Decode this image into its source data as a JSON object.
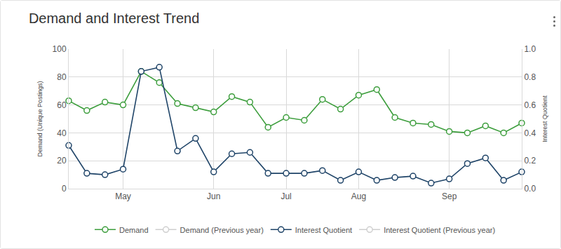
{
  "chart_data": {
    "type": "line",
    "title": "Demand and Interest Trend",
    "categories": [
      null,
      null,
      null,
      "May",
      null,
      null,
      null,
      null,
      "Jun",
      null,
      null,
      null,
      "Jul",
      null,
      null,
      null,
      "Aug",
      null,
      null,
      null,
      null,
      "Sep",
      null,
      null,
      null,
      null
    ],
    "y_label": "Demand (Unique Postings)",
    "y2_label": "Interest Quotient",
    "ylim": [
      0,
      100
    ],
    "yticks": [
      0,
      20,
      40,
      60,
      80,
      100
    ],
    "y2lim": [
      0,
      1
    ],
    "y2ticks": [
      {
        "value": 0,
        "label": "0.0"
      },
      {
        "value": 0.2,
        "label": "0.2"
      },
      {
        "value": 0.4,
        "label": "0.4"
      },
      {
        "value": 0.6,
        "label": "0.6"
      },
      {
        "value": 0.8,
        "label": "0.8"
      },
      {
        "value": 1,
        "label": "1.0"
      }
    ],
    "grid": true,
    "legend": "bottom",
    "marker": "circle-open",
    "series": [
      {
        "name": "Demand",
        "color": "#3d9e3d",
        "values": [
          63,
          56,
          62,
          60,
          84,
          76,
          61,
          58,
          55,
          66,
          62,
          44,
          51,
          49,
          64,
          57,
          67,
          71,
          51,
          47,
          46,
          41,
          40,
          45,
          40,
          47
        ]
      },
      {
        "name": "Demand (Previous year)",
        "color": "#cfcfcf",
        "values": [
          null,
          null,
          null,
          null,
          null,
          null,
          null,
          null,
          null,
          null,
          null,
          null,
          null,
          null,
          null,
          null,
          null,
          null,
          null,
          null,
          null,
          null,
          null,
          null,
          null,
          null
        ]
      },
      {
        "name": "Interest Quotient",
        "color": "#1f4468",
        "axis": "y2",
        "values": [
          0.31,
          0.11,
          0.1,
          0.14,
          0.84,
          0.87,
          0.27,
          0.36,
          0.12,
          0.25,
          0.26,
          0.11,
          0.11,
          0.11,
          0.13,
          0.06,
          0.12,
          0.06,
          0.08,
          0.09,
          0.04,
          0.07,
          0.18,
          0.22,
          0.06,
          0.12
        ]
      },
      {
        "name": "Interest Quotient (Previous year)",
        "color": "#cfcfcf",
        "axis": "y2",
        "values": [
          null,
          null,
          null,
          null,
          null,
          null,
          null,
          null,
          null,
          null,
          null,
          null,
          null,
          null,
          null,
          null,
          null,
          null,
          null,
          null,
          null,
          null,
          null,
          null,
          null,
          null
        ]
      }
    ]
  }
}
